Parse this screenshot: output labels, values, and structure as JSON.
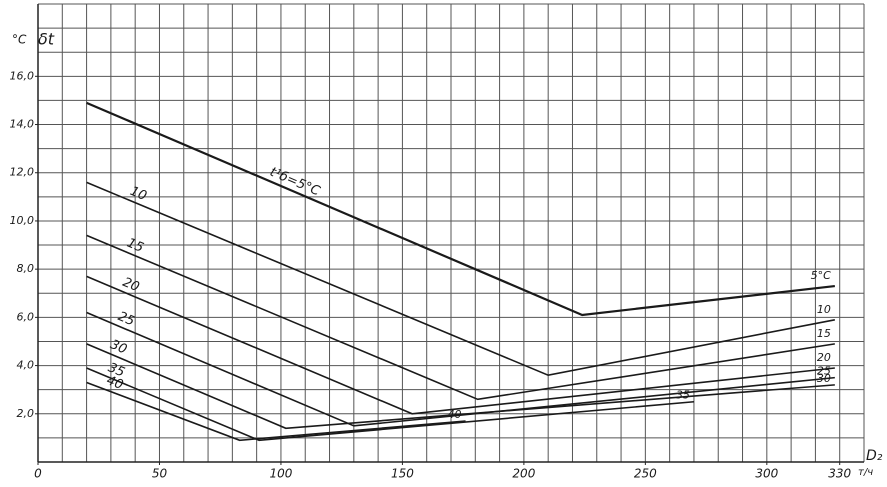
{
  "chart_data": {
    "type": "line",
    "y_label": "°C",
    "y_symbol": "δt",
    "x_label": "D₂",
    "x_unit": "т/ч",
    "xlim": [
      0,
      340
    ],
    "ylim": [
      0,
      19
    ],
    "xticks": [
      0,
      50,
      100,
      150,
      200,
      250,
      300,
      330
    ],
    "yticks": [
      {
        "value": 2,
        "label": "2,0"
      },
      {
        "value": 4,
        "label": "4,0"
      },
      {
        "value": 6,
        "label": "6,0"
      },
      {
        "value": 8,
        "label": "8,0"
      },
      {
        "value": 10,
        "label": "10,0"
      },
      {
        "value": 12,
        "label": "12,0"
      },
      {
        "value": 14,
        "label": "14,0"
      },
      {
        "value": 16,
        "label": "16,0"
      }
    ],
    "x_gridlines": [
      10,
      20,
      30,
      40,
      50,
      60,
      70,
      80,
      90,
      100,
      110,
      120,
      130,
      140,
      150,
      160,
      170,
      180,
      190,
      200,
      210,
      220,
      230,
      240,
      250,
      260,
      270,
      280,
      290,
      300,
      310,
      320,
      330,
      340
    ],
    "y_gridlines": [
      1,
      2,
      3,
      4,
      5,
      6,
      7,
      8,
      9,
      10,
      11,
      12,
      13,
      14,
      15,
      16,
      17,
      18,
      19
    ],
    "grid": true,
    "color": "#1a1a1a",
    "series": [
      {
        "name": "t¹б=5°C",
        "end_label": "5°C",
        "x": [
          20,
          224,
          328
        ],
        "values": [
          14.9,
          6.1,
          7.3
        ]
      },
      {
        "name": "10",
        "end_label": "10",
        "x": [
          20,
          210,
          328
        ],
        "values": [
          11.6,
          3.6,
          5.9
        ]
      },
      {
        "name": "15",
        "end_label": "15",
        "x": [
          20,
          181,
          328
        ],
        "values": [
          9.4,
          2.6,
          4.9
        ]
      },
      {
        "name": "20",
        "end_label": "20",
        "x": [
          20,
          154,
          328
        ],
        "values": [
          7.7,
          2.0,
          3.9
        ]
      },
      {
        "name": "25",
        "end_label": "25",
        "x": [
          20,
          130,
          328
        ],
        "values": [
          6.2,
          1.5,
          3.5
        ]
      },
      {
        "name": "30",
        "end_label": "30",
        "x": [
          20,
          102,
          328
        ],
        "values": [
          4.9,
          1.4,
          3.2
        ]
      },
      {
        "name": "35",
        "end_label": "35",
        "x": [
          20,
          91,
          270
        ],
        "values": [
          3.9,
          0.9,
          2.5
        ]
      },
      {
        "name": "40",
        "end_label": "40",
        "x": [
          20,
          83,
          176
        ],
        "values": [
          3.3,
          0.9,
          1.7
        ]
      }
    ]
  }
}
